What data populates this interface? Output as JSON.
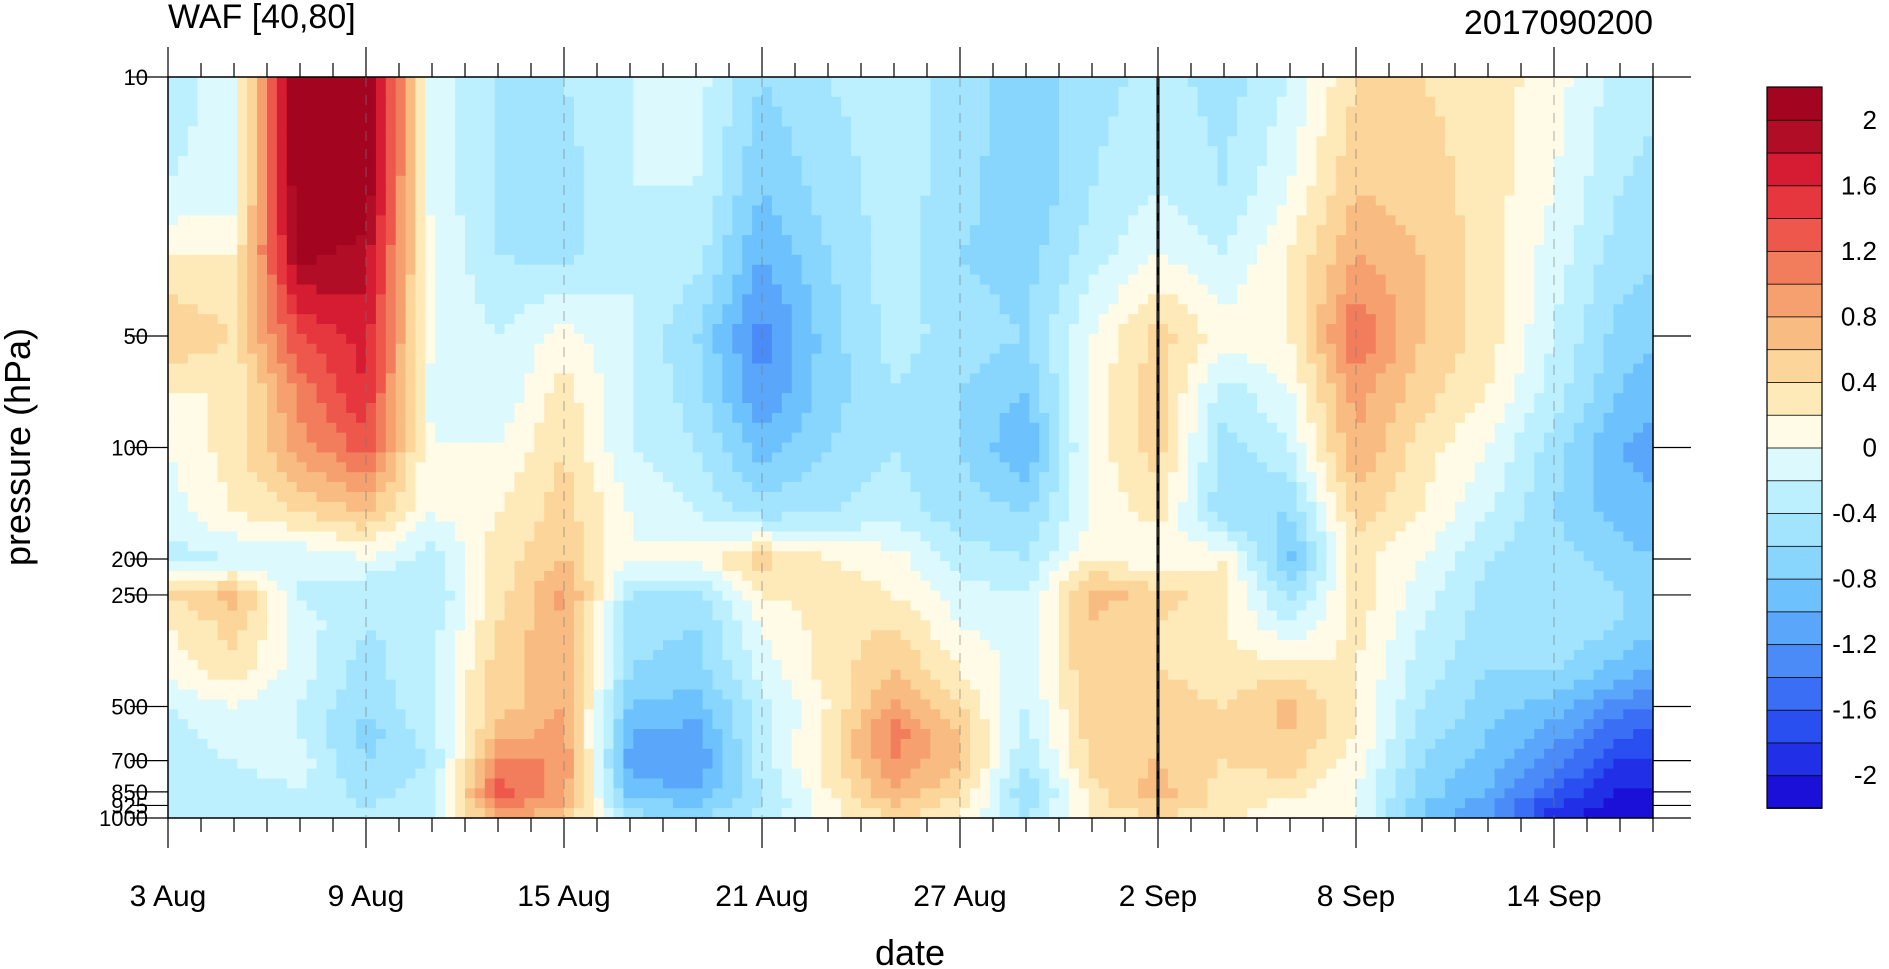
{
  "chart_data": {
    "type": "heatmap",
    "title_left": "WAF [40,80]",
    "title_right": "2017090200",
    "xlabel": "date",
    "ylabel": "pressure (hPa)",
    "x_ticks": [
      "3 Aug",
      "9 Aug",
      "15 Aug",
      "21 Aug",
      "27 Aug",
      "2 Sep",
      "8 Sep",
      "14 Sep"
    ],
    "x_range_days": [
      "3 Aug",
      "17 Sep"
    ],
    "y_ticks": [
      "10",
      "50",
      "100",
      "200",
      "250",
      "500",
      "700",
      "850",
      "925",
      "1000"
    ],
    "y_axis_scale": "log",
    "y_range_hPa": [
      1000,
      10
    ],
    "marked_date": "2 Sep",
    "colorbar": {
      "labels": [
        "2",
        "1.6",
        "1.2",
        "0.8",
        "0.4",
        "0",
        "-0.4",
        "-0.8",
        "-1.2",
        "-1.6",
        "-2"
      ],
      "levels": [
        -2.2,
        -2,
        -1.8,
        -1.6,
        -1.4,
        -1.2,
        -1,
        -0.8,
        -0.6,
        -0.4,
        -0.2,
        0,
        0.2,
        0.4,
        0.6,
        0.8,
        1,
        1.2,
        1.4,
        1.6,
        1.8,
        2,
        2.2
      ],
      "colors": [
        "#1a10d8",
        "#2130e6",
        "#2a4ff0",
        "#3a6ef5",
        "#4a8bf8",
        "#5aa6fb",
        "#6dc2fd",
        "#88d6fe",
        "#a2e4fe",
        "#bdf0fe",
        "#dcfafd",
        "#fffbe6",
        "#fdeab8",
        "#fbd59a",
        "#f8bc82",
        "#f5a06e",
        "#f27d5c",
        "#ee574b",
        "#e6363e",
        "#d51c32",
        "#b20d27",
        "#a3041f"
      ]
    },
    "pressures": [
      10,
      20,
      30,
      50,
      70,
      100,
      150,
      200,
      250,
      300,
      400,
      500,
      600,
      700,
      850,
      925,
      1000
    ],
    "grid_step_days": 2,
    "x_days": [
      0,
      2,
      4,
      6,
      8,
      10,
      12,
      14,
      16,
      18,
      20,
      22,
      24,
      26,
      28,
      30,
      32,
      34,
      36,
      38,
      40,
      42,
      44,
      46
    ],
    "z": [
      [
        -0.3,
        -0.1,
        2.4,
        2.3,
        -0.1,
        -0.4,
        -0.4,
        -0.2,
        -0.1,
        -0.6,
        -0.4,
        -0.3,
        -0.5,
        -0.7,
        -0.5,
        -0.3,
        -0.5,
        -0.2,
        0.4,
        0.4,
        0.3,
        0.1,
        -0.3,
        -0.4
      ],
      [
        -0.2,
        -0.1,
        2.3,
        2.2,
        -0.1,
        -0.4,
        -0.5,
        -0.2,
        -0.2,
        -0.8,
        -0.5,
        -0.3,
        -0.5,
        -0.8,
        -0.4,
        -0.2,
        -0.4,
        0.0,
        0.6,
        0.5,
        0.3,
        0.0,
        -0.4,
        -0.5
      ],
      [
        0.2,
        0.2,
        2.1,
        1.9,
        0.0,
        -0.4,
        -0.5,
        -0.2,
        -0.3,
        -1.0,
        -0.6,
        -0.3,
        -0.6,
        -0.7,
        -0.3,
        0.0,
        -0.2,
        0.2,
        0.8,
        0.6,
        0.3,
        -0.1,
        -0.5,
        -0.6
      ],
      [
        0.6,
        0.4,
        1.4,
        1.7,
        0.0,
        -0.2,
        0.1,
        -0.2,
        -0.6,
        -1.3,
        -0.7,
        -0.3,
        -0.5,
        -0.6,
        0.0,
        0.5,
        0.1,
        0.2,
        1.2,
        0.6,
        0.3,
        -0.2,
        -0.7,
        -0.8
      ],
      [
        0.2,
        0.2,
        1.1,
        1.6,
        -0.1,
        -0.2,
        0.3,
        -0.2,
        -0.5,
        -1.2,
        -0.7,
        -0.4,
        -0.6,
        -0.8,
        0.1,
        0.5,
        -0.3,
        0.0,
        0.9,
        0.5,
        0.2,
        -0.3,
        -0.8,
        -1.0
      ],
      [
        0.0,
        0.3,
        0.9,
        1.3,
        0.0,
        0.0,
        0.4,
        -0.2,
        -0.4,
        -0.9,
        -0.6,
        -0.4,
        -0.6,
        -1.0,
        0.1,
        0.5,
        -0.5,
        -0.2,
        0.8,
        0.3,
        0.0,
        -0.5,
        -1.0,
        -1.2
      ],
      [
        -0.1,
        0.2,
        0.4,
        0.6,
        0.0,
        0.2,
        0.5,
        0.0,
        -0.2,
        -0.5,
        -0.4,
        -0.3,
        -0.5,
        -0.6,
        0.0,
        0.3,
        -0.6,
        -0.6,
        0.5,
        0.2,
        -0.2,
        -0.6,
        -0.9,
        -1.0
      ],
      [
        -0.3,
        -0.2,
        -0.2,
        0.0,
        -0.3,
        0.3,
        0.6,
        0.0,
        0.1,
        0.5,
        0.2,
        0.1,
        -0.3,
        -0.4,
        0.2,
        0.0,
        0.2,
        -0.9,
        0.3,
        0.0,
        -0.4,
        -0.5,
        -0.7,
        -0.9
      ],
      [
        0.4,
        0.7,
        -0.2,
        -0.4,
        -0.4,
        0.3,
        0.9,
        -0.4,
        -0.5,
        0.2,
        0.3,
        0.2,
        -0.1,
        -0.2,
        0.7,
        0.5,
        0.3,
        -0.5,
        0.3,
        -0.1,
        -0.5,
        -0.4,
        -0.6,
        -0.8
      ],
      [
        0.2,
        0.5,
        -0.1,
        -0.4,
        -0.3,
        0.4,
        0.8,
        -0.5,
        -0.6,
        0.0,
        0.3,
        0.4,
        0.0,
        -0.1,
        0.6,
        0.4,
        0.2,
        -0.2,
        0.3,
        -0.2,
        -0.5,
        -0.4,
        -0.6,
        -0.9
      ],
      [
        0.1,
        0.3,
        -0.1,
        -0.5,
        -0.2,
        0.5,
        0.8,
        -0.6,
        -0.7,
        -0.1,
        0.3,
        0.6,
        0.2,
        -0.1,
        0.6,
        0.4,
        0.3,
        0.3,
        0.2,
        -0.3,
        -0.6,
        -0.6,
        -0.9,
        -1.1
      ],
      [
        -0.2,
        0.0,
        -0.2,
        -0.6,
        -0.2,
        0.5,
        0.8,
        -0.8,
        -0.9,
        -0.3,
        0.2,
        0.9,
        0.4,
        -0.2,
        0.5,
        0.5,
        0.4,
        0.7,
        0.2,
        -0.4,
        -0.7,
        -0.9,
        -1.3,
        -1.5
      ],
      [
        -0.3,
        -0.1,
        -0.2,
        -0.7,
        -0.3,
        0.7,
        0.9,
        -1.0,
        -1.1,
        -0.3,
        0.3,
        1.1,
        0.6,
        -0.3,
        0.5,
        0.6,
        0.4,
        0.6,
        0.2,
        -0.5,
        -0.8,
        -1.1,
        -1.6,
        -1.7
      ],
      [
        -0.3,
        -0.2,
        -0.1,
        -0.6,
        -0.4,
        1.0,
        1.0,
        -1.1,
        -1.2,
        -0.3,
        0.3,
        1.0,
        0.6,
        -0.4,
        0.5,
        0.6,
        0.4,
        0.5,
        0.1,
        -0.6,
        -0.9,
        -1.3,
        -1.8,
        -1.9
      ],
      [
        -0.4,
        -0.3,
        -0.2,
        -0.5,
        -0.3,
        1.3,
        0.9,
        -0.9,
        -1.0,
        -0.4,
        0.2,
        0.8,
        0.4,
        -0.6,
        0.3,
        0.7,
        0.3,
        0.3,
        0.0,
        -0.7,
        -1.0,
        -1.6,
        -2.0,
        -2.1
      ],
      [
        -0.3,
        -0.3,
        -0.2,
        -0.4,
        -0.3,
        1.1,
        0.8,
        -0.7,
        -0.8,
        -0.4,
        0.1,
        0.6,
        0.3,
        -0.5,
        0.3,
        0.6,
        0.3,
        0.1,
        0.0,
        -0.8,
        -1.1,
        -1.8,
        -2.1,
        -2.2
      ],
      [
        -0.3,
        -0.3,
        -0.2,
        -0.3,
        -0.2,
        0.8,
        0.6,
        -0.5,
        -0.6,
        -0.3,
        0.1,
        0.4,
        0.2,
        -0.4,
        0.2,
        0.4,
        0.2,
        0.1,
        0.0,
        -0.8,
        -1.2,
        -1.9,
        -2.2,
        -2.3
      ]
    ]
  }
}
